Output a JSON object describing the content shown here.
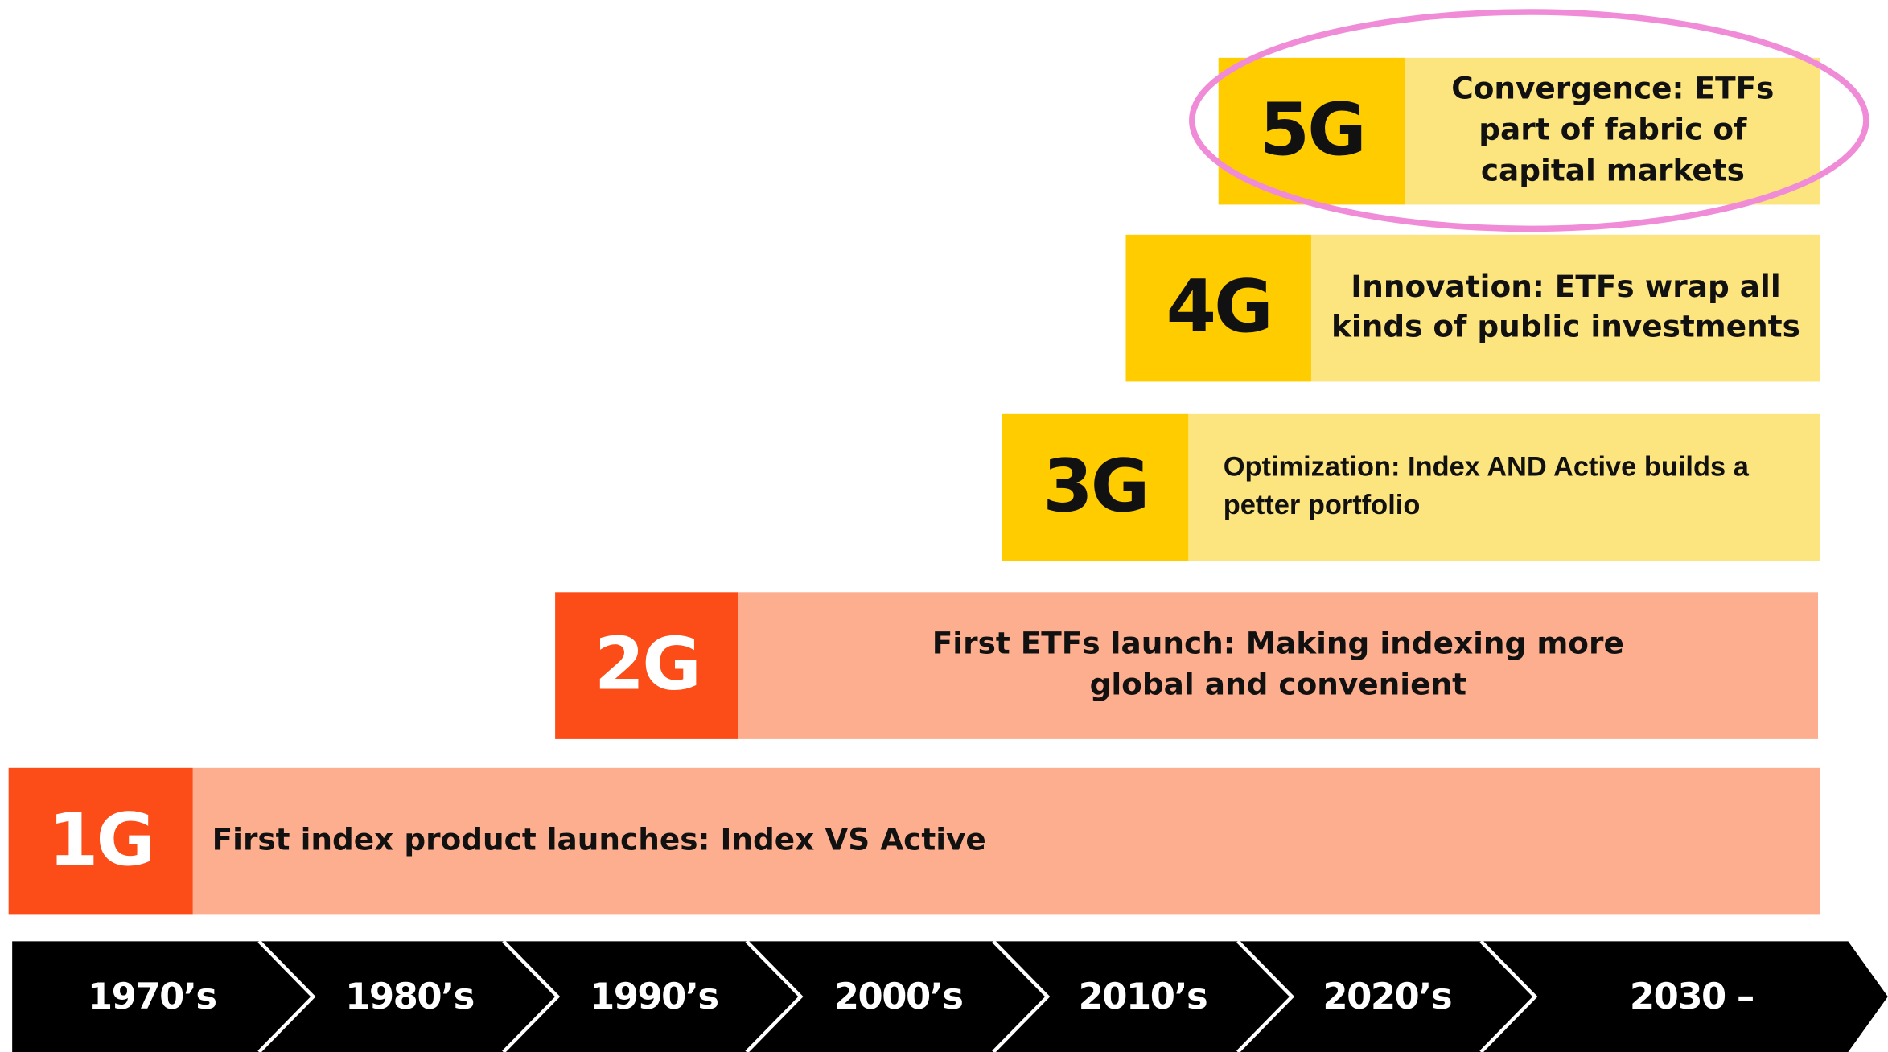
{
  "generations": [
    {
      "label": "5G",
      "lines": [
        "Convergence: ETFs",
        "part of fabric of",
        "capital markets"
      ]
    },
    {
      "label": "4G",
      "lines": [
        "Innovation: ETFs wrap all",
        "kinds of public investments"
      ]
    },
    {
      "label": "3G",
      "lines": [
        "Optimization: Index AND Active builds a",
        "petter portfolio"
      ]
    },
    {
      "label": "2G",
      "lines": [
        "First ETFs launch: Making indexing more",
        "global and convenient"
      ]
    },
    {
      "label": "1G",
      "lines": [
        "First index product launches: Index VS Active"
      ]
    }
  ],
  "timeline": [
    "1970’s",
    "1980’s",
    "1990’s",
    "2000’s",
    "2010’s",
    "2020’s",
    "2030 –"
  ]
}
